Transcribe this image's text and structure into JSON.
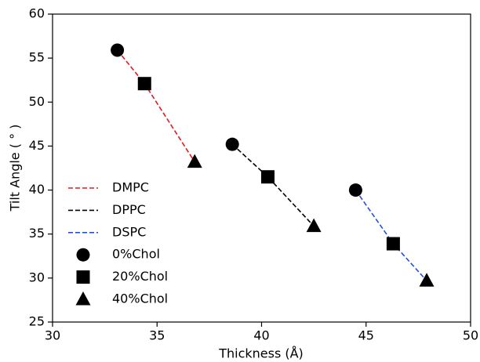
{
  "chart_data": {
    "type": "scatter",
    "x_label": "Thickness (Å)",
    "y_label": "Tilt Angle ( ° )",
    "xlim": [
      30,
      50
    ],
    "xticks": [
      30,
      35,
      40,
      45,
      50
    ],
    "ylim": [
      25,
      60
    ],
    "yticks": [
      25,
      30,
      35,
      40,
      45,
      50,
      55,
      60
    ],
    "legend": "lower left",
    "series": [
      {
        "name": "DMPC",
        "color": "#e8161b",
        "linestyle": "dashed",
        "x": [
          33.1,
          34.4,
          36.8
        ],
        "values": [
          55.9,
          52.1,
          43.2
        ]
      },
      {
        "name": "DPPC",
        "color": "#000000",
        "linestyle": "dashed",
        "x": [
          38.6,
          40.3,
          42.5
        ],
        "values": [
          45.2,
          41.5,
          35.9
        ]
      },
      {
        "name": "DSPC",
        "color": "#1f4fe0",
        "linestyle": "dashed",
        "x": [
          44.5,
          46.3,
          47.9
        ],
        "values": [
          40.0,
          33.9,
          29.7
        ]
      }
    ],
    "marker_series": [
      {
        "name": "0%Chol",
        "marker": "circle",
        "color": "#000000"
      },
      {
        "name": "20%Chol",
        "marker": "square",
        "color": "#000000"
      },
      {
        "name": "40%Chol",
        "marker": "triangle",
        "color": "#000000"
      }
    ]
  }
}
